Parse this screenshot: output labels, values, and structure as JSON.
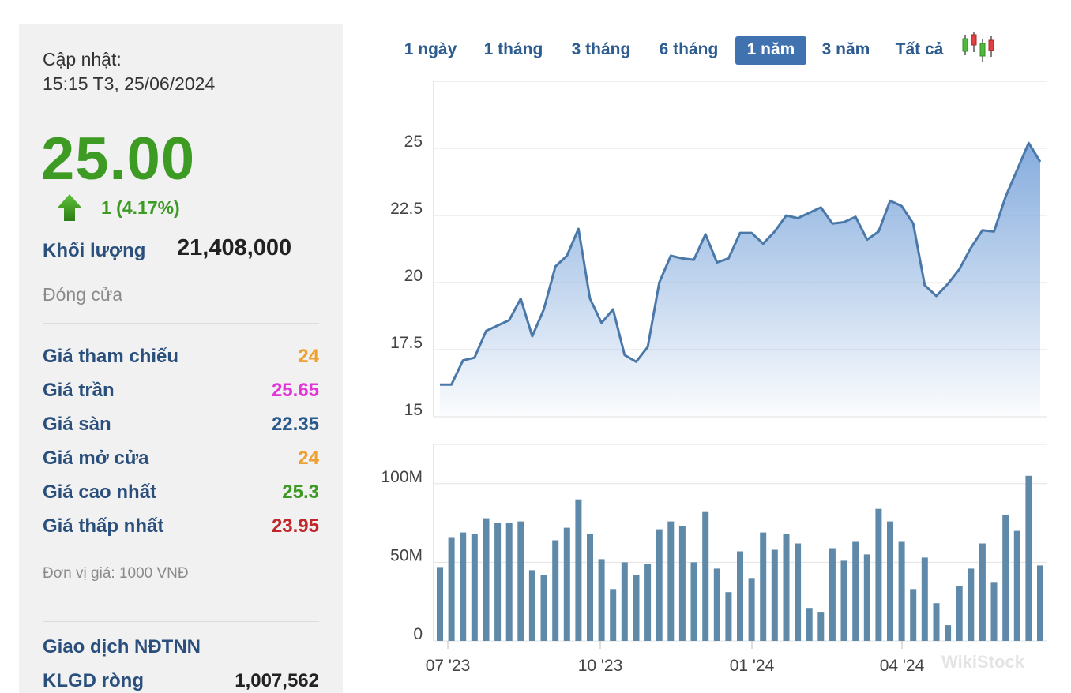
{
  "info": {
    "update_label": "Cập nhật:",
    "update_time": "15:15 T3, 25/06/2024",
    "price": "25.00",
    "change": "1 (4.17%)",
    "volume_label": "Khối lượng",
    "volume_value": "21,408,000",
    "status": "Đóng cửa",
    "rows": [
      {
        "label": "Giá tham chiếu",
        "value": "24",
        "color": "#f0a030"
      },
      {
        "label": "Giá trần",
        "value": "25.65",
        "color": "#e334d8"
      },
      {
        "label": "Giá sàn",
        "value": "22.35",
        "color": "#2a5a8c"
      },
      {
        "label": "Giá mở cửa",
        "value": "24",
        "color": "#f0a030"
      },
      {
        "label": "Giá cao nhất",
        "value": "25.3",
        "color": "#3d9b24"
      },
      {
        "label": "Giá thấp nhất",
        "value": "23.95",
        "color": "#c0262a"
      }
    ],
    "unit_note": "Đơn vị giá: 1000 VNĐ",
    "foreign_title": "Giao dịch NĐTNN",
    "net_label": "KLGD ròng",
    "net_value": "1,007,562"
  },
  "tabs": [
    {
      "label": "1 ngày",
      "active": false
    },
    {
      "label": "1 tháng",
      "active": false
    },
    {
      "label": "3 tháng",
      "active": false
    },
    {
      "label": "6 tháng",
      "active": false
    },
    {
      "label": "1 năm",
      "active": true
    },
    {
      "label": "3 năm",
      "active": false
    },
    {
      "label": "Tất cả",
      "active": false
    }
  ],
  "candlestick_icon": "candlestick-icon",
  "watermark": "WikiStock",
  "colors": {
    "up": "#3d9b24",
    "line": "#4a78a8",
    "area_top": "#7fa8dc",
    "bar": "#5f89a8",
    "active_tab": "#3f72ae"
  },
  "chart_data": [
    {
      "type": "area",
      "x_ticks": [
        "07 '23",
        "10 '23",
        "01 '24",
        "04 '24"
      ],
      "y_ticks": [
        "15",
        "17.5",
        "20",
        "22.5",
        "25"
      ],
      "ylim": [
        15,
        27.5
      ],
      "grid": true,
      "values": [
        16.2,
        16.2,
        17.1,
        17.2,
        18.2,
        18.4,
        18.6,
        19.4,
        18.0,
        19.0,
        20.6,
        21.0,
        22.0,
        19.4,
        18.5,
        19.0,
        17.3,
        17.05,
        17.6,
        20.0,
        21.0,
        20.9,
        20.85,
        21.8,
        20.75,
        20.9,
        21.85,
        21.85,
        21.45,
        21.9,
        22.5,
        22.4,
        22.6,
        22.8,
        22.2,
        22.25,
        22.45,
        21.6,
        21.9,
        23.05,
        22.85,
        22.2,
        19.9,
        19.5,
        19.95,
        20.5,
        21.3,
        21.95,
        21.9,
        23.2,
        24.2,
        25.2,
        24.5
      ]
    },
    {
      "type": "bar",
      "x_ticks": [
        "07 '23",
        "10 '23",
        "01 '24",
        "04 '24"
      ],
      "y_ticks": [
        "0",
        "50M",
        "100M"
      ],
      "ylim": [
        0,
        125
      ],
      "values": [
        47,
        66,
        69,
        68,
        78,
        75,
        75,
        76,
        45,
        42,
        64,
        72,
        90,
        68,
        52,
        33,
        50,
        42,
        49,
        71,
        76,
        73,
        50,
        82,
        46,
        31,
        57,
        40,
        69,
        58,
        68,
        62,
        21,
        18,
        59,
        51,
        63,
        55,
        84,
        76,
        63,
        33,
        53,
        24,
        10,
        35,
        46,
        62,
        37,
        80,
        70,
        105,
        48
      ]
    }
  ]
}
